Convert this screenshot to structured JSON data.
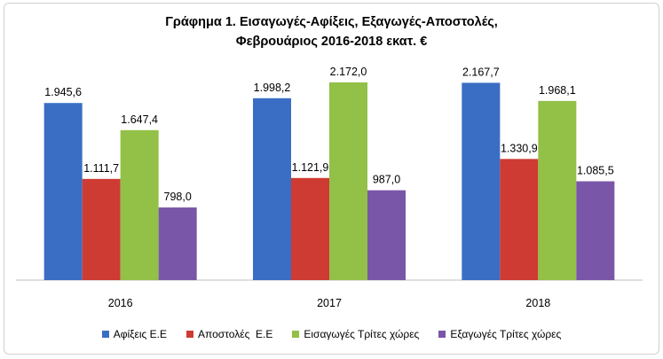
{
  "chart_data": {
    "type": "bar",
    "title_line1": "Γράφημα 1. Εισαγωγές-Αφίξεις, Εξαγωγές-Αποστολές,",
    "title_line2": "Φεβρουάριος 2016-2018 εκατ. €",
    "categories": [
      "2016",
      "2017",
      "2018"
    ],
    "series": [
      {
        "name": "Αφίξεις Ε.Ε",
        "color": "#3A6EC4",
        "values": [
          1945.6,
          1998.2,
          2167.7
        ],
        "labels": [
          "1.945,6",
          "1.998,2",
          "2.167,7"
        ]
      },
      {
        "name": "Αποστολές  Ε.Ε",
        "color": "#CE3B33",
        "values": [
          1111.7,
          1121.9,
          1330.9
        ],
        "labels": [
          "1.111,7",
          "1.121,9",
          "1.330,9"
        ]
      },
      {
        "name": "Εισαγωγές Τρίτες χώρες",
        "color": "#93C046",
        "values": [
          1647.4,
          2172.0,
          1968.1
        ],
        "labels": [
          "1.647,4",
          "2.172,0",
          "1.968,1"
        ]
      },
      {
        "name": "Εξαγωγές Τρίτες χώρες",
        "color": "#7A56A8",
        "values": [
          798.0,
          987.0,
          1085.5
        ],
        "labels": [
          "798,0",
          "987,0",
          "1.085,5"
        ]
      }
    ],
    "ylim": [
      0,
      2600
    ],
    "grid": false,
    "legend_position": "bottom"
  }
}
